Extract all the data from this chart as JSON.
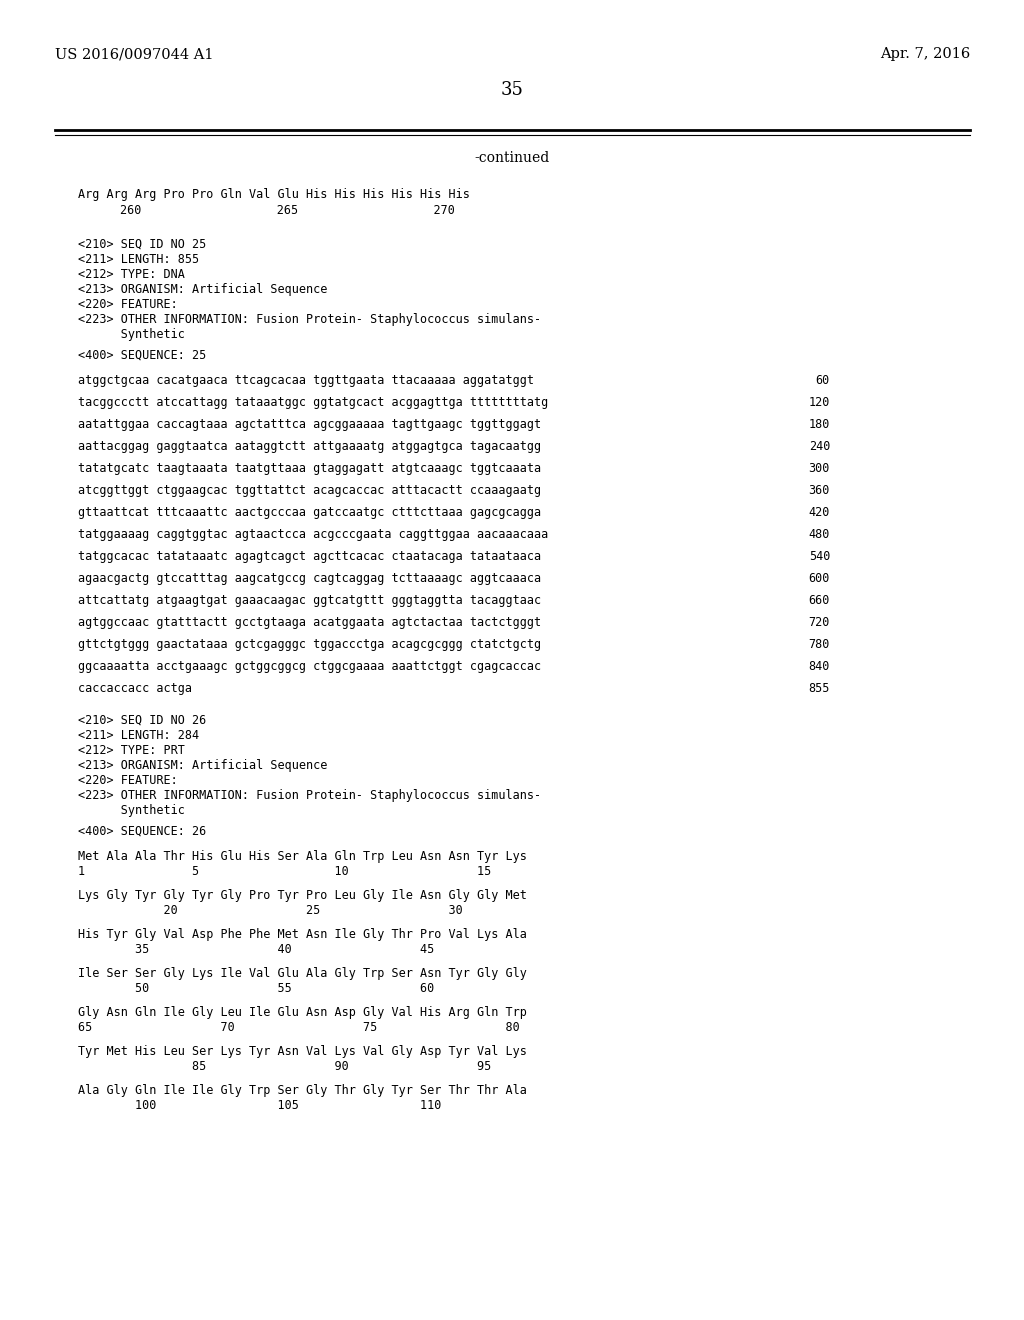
{
  "background_color": "#ffffff",
  "top_left_text": "US 2016/0097044 A1",
  "top_right_text": "Apr. 7, 2016",
  "page_number": "35",
  "continued_label": "-continued",
  "line1": "Arg Arg Arg Pro Pro Gln Val Glu His His His His His His",
  "line2": "260                   265                   270",
  "meta25": [
    "<210> SEQ ID NO 25",
    "<211> LENGTH: 855",
    "<212> TYPE: DNA",
    "<213> ORGANISM: Artificial Sequence",
    "<220> FEATURE:",
    "<223> OTHER INFORMATION: Fusion Protein- Staphylococcus simulans-",
    "      Synthetic"
  ],
  "seq25_label": "<400> SEQUENCE: 25",
  "dna_lines": [
    [
      "atggctgcaa cacatgaaca ttcagcacaa tggttgaata ttacaaaaa aggatatggt",
      "60"
    ],
    [
      "tacggccctt atccattagg tataaatggc ggtatgcact acggagttga ttttttttatg",
      "120"
    ],
    [
      "aatattggaa caccagtaaa agctatttca agcggaaaaa tagttgaagc tggttggagt",
      "180"
    ],
    [
      "aattacggag gaggtaatca aataggtctt attgaaaatg atggagtgca tagacaatgg",
      "240"
    ],
    [
      "tatatgcatc taagtaaata taatgttaaa gtaggagatt atgtcaaagc tggtcaaata",
      "300"
    ],
    [
      "atcggttggt ctggaagcac tggttattct acagcaccac atttacactt ccaaagaatg",
      "360"
    ],
    [
      "gttaattcat tttcaaattc aactgcccaa gatccaatgc ctttcttaaa gagcgcagga",
      "420"
    ],
    [
      "tatggaaaag caggtggtac agtaactcca acgcccgaata caggttggaa aacaaacaaa",
      "480"
    ],
    [
      "tatggcacac tatataaatc agagtcagct agcttcacac ctaatacaga tataataaca",
      "540"
    ],
    [
      "agaacgactg gtccatttag aagcatgccg cagtcaggag tcttaaaagc aggtcaaaca",
      "600"
    ],
    [
      "attcattatg atgaagtgat gaaacaagac ggtcatgttt gggtaggtta tacaggtaac",
      "660"
    ],
    [
      "agtggccaac gtatttactt gcctgtaaga acatggaata agtctactaa tactctgggt",
      "720"
    ],
    [
      "gttctgtggg gaactataaa gctcgagggc tggaccctga acagcgcggg ctatctgctg",
      "780"
    ],
    [
      "ggcaaaatta acctgaaagc gctggcggcg ctggcgaaaa aaattctggt cgagcaccac",
      "840"
    ],
    [
      "caccaccacc actga",
      "855"
    ]
  ],
  "meta26": [
    "<210> SEQ ID NO 26",
    "<211> LENGTH: 284",
    "<212> TYPE: PRT",
    "<213> ORGANISM: Artificial Sequence",
    "<220> FEATURE:",
    "<223> OTHER INFORMATION: Fusion Protein- Staphylococcus simulans-",
    "      Synthetic"
  ],
  "seq26_label": "<400> SEQUENCE: 26",
  "prot_lines": [
    [
      "Met Ala Ala Thr His Glu His Ser Ala Gln Trp Leu Asn Asn Tyr Lys",
      ""
    ],
    [
      "1               5                   10                  15",
      ""
    ],
    [
      "Lys Gly Tyr Gly Tyr Gly Pro Tyr Pro Leu Gly Ile Asn Gly Gly Met",
      ""
    ],
    [
      "            20                  25                  30",
      ""
    ],
    [
      "His Tyr Gly Val Asp Phe Phe Met Asn Ile Gly Thr Pro Val Lys Ala",
      ""
    ],
    [
      "        35                  40                  45",
      ""
    ],
    [
      "Ile Ser Ser Gly Lys Ile Val Glu Ala Gly Trp Ser Asn Tyr Gly Gly",
      ""
    ],
    [
      "        50                  55                  60",
      ""
    ],
    [
      "Gly Asn Gln Ile Gly Leu Ile Glu Asn Asp Gly Val His Arg Gln Trp",
      ""
    ],
    [
      "65                  70                  75                  80",
      ""
    ],
    [
      "Tyr Met His Leu Ser Lys Tyr Asn Val Lys Val Gly Asp Tyr Val Lys",
      ""
    ],
    [
      "                85                  90                  95",
      ""
    ],
    [
      "Ala Gly Gln Ile Ile Gly Trp Ser Gly Thr Gly Tyr Ser Thr Thr Ala",
      ""
    ],
    [
      "        100                 105                 110",
      ""
    ]
  ],
  "mono_size": 8.5,
  "serif_size": 10.5,
  "page_num_size": 13
}
